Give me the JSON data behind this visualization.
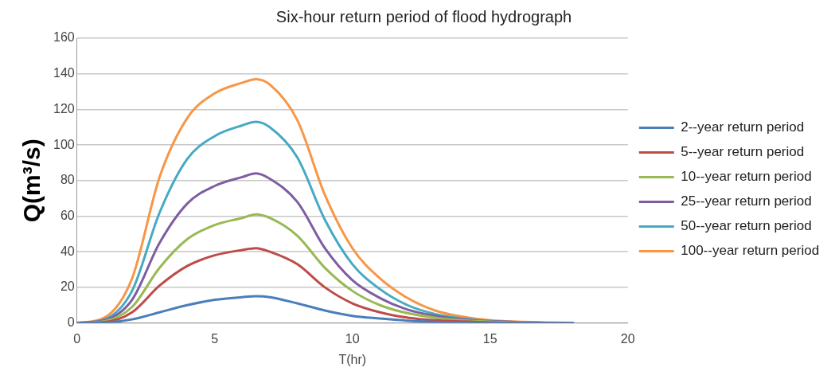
{
  "chart_data": {
    "type": "line",
    "title": "Six-hour return period of flood hydrograph",
    "xlabel": "T(hr)",
    "ylabel": "Q(m³/s)",
    "x": [
      0,
      1,
      2,
      3,
      4,
      5,
      6,
      6.5,
      7,
      8,
      9,
      10,
      11,
      12,
      13,
      14,
      15,
      16,
      17,
      18
    ],
    "xlim": [
      0,
      20
    ],
    "xticks": [
      0,
      5,
      10,
      15,
      20
    ],
    "ylim": [
      0,
      160
    ],
    "yticks": [
      0,
      20,
      40,
      60,
      80,
      100,
      120,
      140,
      160
    ],
    "grid": "y",
    "legend": "right",
    "marker": "none",
    "line_style": "solid",
    "series": [
      {
        "name": "2--year return period",
        "color": "#4a7ebb",
        "values": [
          0,
          0.2,
          2,
          6,
          10,
          13,
          14.5,
          15,
          14.5,
          11,
          7,
          4,
          2.5,
          1.3,
          0.6,
          0.3,
          0.1,
          0,
          0,
          0
        ]
      },
      {
        "name": "5--year return period",
        "color": "#be4b48",
        "values": [
          0,
          0.5,
          6,
          21,
          32,
          38,
          41,
          42,
          40,
          33,
          20,
          11,
          6,
          3,
          1.5,
          0.8,
          0.3,
          0.1,
          0,
          0
        ]
      },
      {
        "name": "10--year return period",
        "color": "#98b954",
        "values": [
          0,
          1,
          9,
          31,
          47,
          55,
          59,
          61,
          59,
          49,
          31,
          18,
          10,
          5.5,
          3,
          1.5,
          0.7,
          0.3,
          0.1,
          0
        ]
      },
      {
        "name": "25--year return period",
        "color": "#7d5fa0",
        "values": [
          0,
          1.5,
          13,
          45,
          67,
          77,
          82,
          84,
          81,
          68,
          42,
          24,
          14,
          7.5,
          4,
          2,
          1,
          0.4,
          0.1,
          0
        ]
      },
      {
        "name": "50--year return period",
        "color": "#46aac5",
        "values": [
          0,
          2,
          18,
          62,
          92,
          105,
          111,
          113,
          110,
          93,
          58,
          33,
          19,
          10,
          5,
          2.5,
          1,
          0.5,
          null,
          null
        ]
      },
      {
        "name": "100--year return period",
        "color": "#f79646",
        "values": [
          0,
          3,
          25,
          82,
          115,
          129,
          135,
          137,
          134,
          114,
          72,
          42,
          25,
          14,
          7,
          3.5,
          1.5,
          0.7,
          0.3,
          0
        ]
      }
    ]
  }
}
